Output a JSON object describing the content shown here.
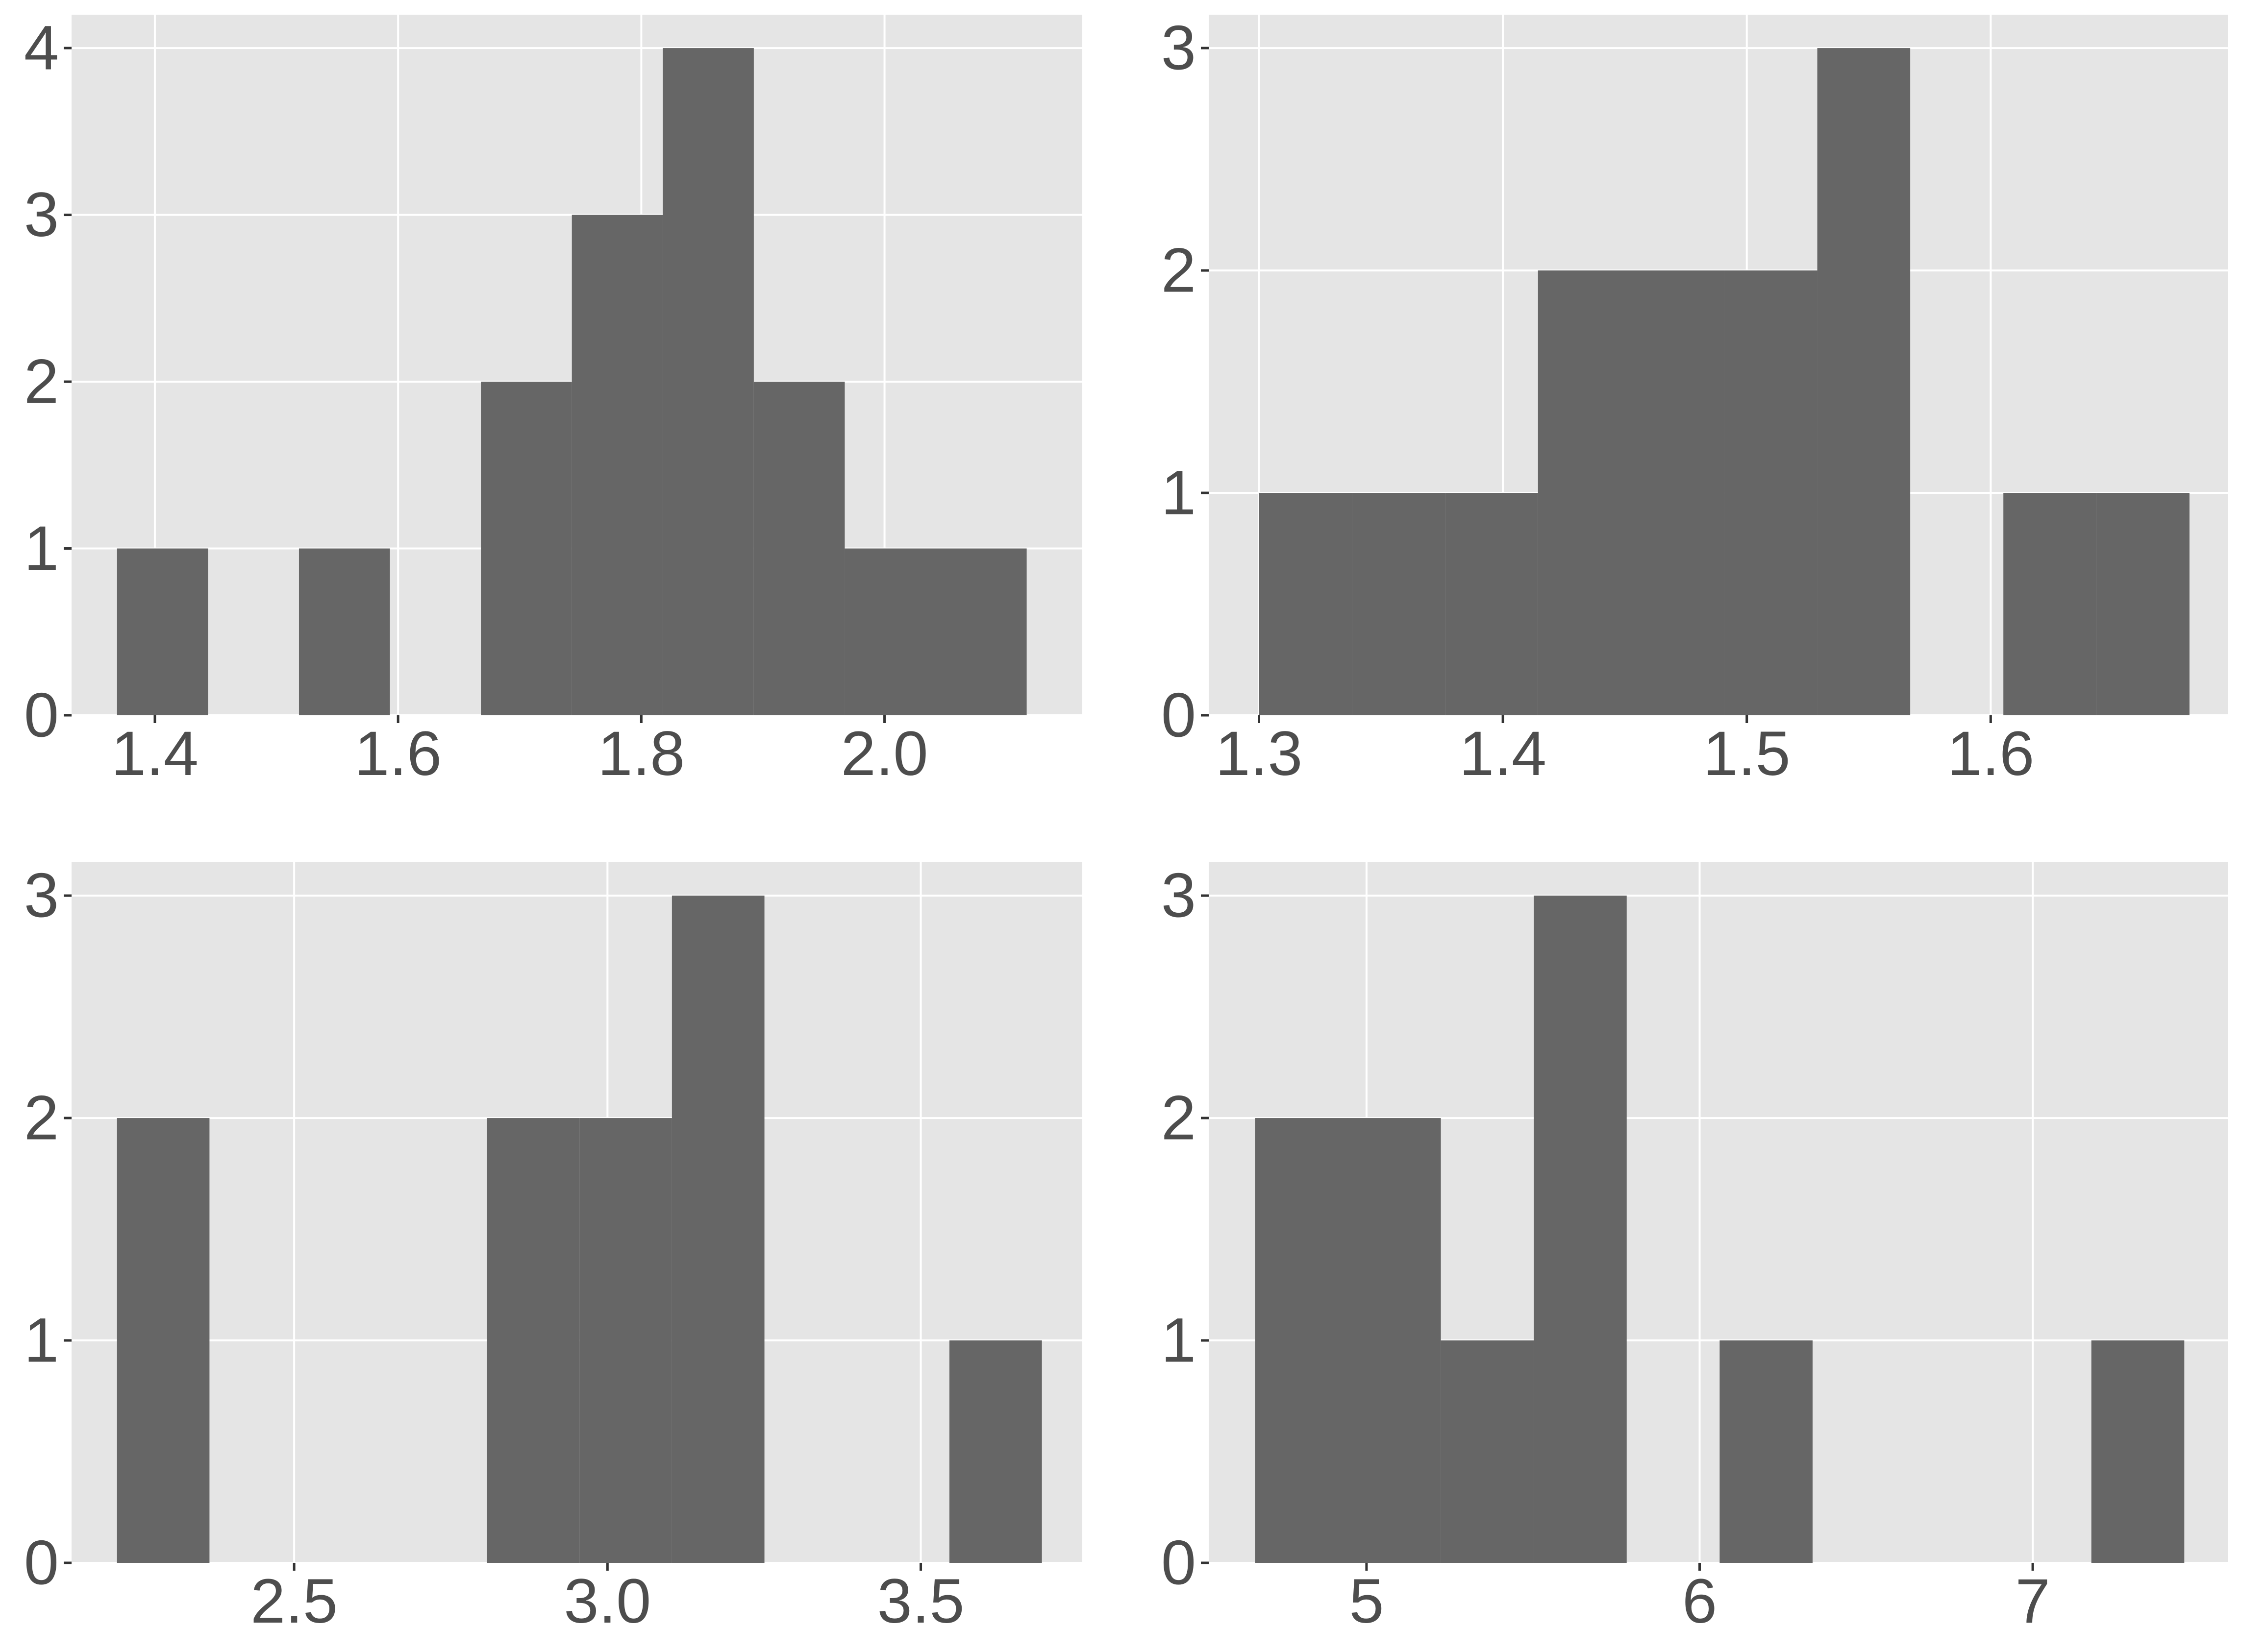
{
  "colors": {
    "panel_bg": "#e5e5e5",
    "grid": "#ffffff",
    "bar": "#666666",
    "text": "#4d4d4d"
  },
  "chart_data": [
    {
      "type": "bar",
      "histogram": true,
      "title": "",
      "xlabel": "",
      "ylabel": "",
      "grid": true,
      "xlim": [
        1.3315,
        2.1626
      ],
      "ylim": [
        0,
        4.2
      ],
      "xticks": [
        1.4,
        1.6,
        1.8,
        2.0
      ],
      "xtick_labels": [
        "1.4",
        "1.6",
        "1.8",
        "2.0"
      ],
      "yticks": [
        0,
        1,
        2,
        3,
        4
      ],
      "ytick_labels": [
        "0",
        "1",
        "2",
        "3",
        "4"
      ],
      "bins": [
        {
          "x0": 1.3689,
          "x1": 1.4437,
          "count": 1
        },
        {
          "x0": 1.4437,
          "x1": 1.5185,
          "count": 0
        },
        {
          "x0": 1.5185,
          "x1": 1.5933,
          "count": 1
        },
        {
          "x0": 1.5933,
          "x1": 1.6681,
          "count": 0
        },
        {
          "x0": 1.6681,
          "x1": 1.7429,
          "count": 2
        },
        {
          "x0": 1.7429,
          "x1": 1.8177,
          "count": 3
        },
        {
          "x0": 1.8177,
          "x1": 1.8925,
          "count": 4
        },
        {
          "x0": 1.8925,
          "x1": 1.9673,
          "count": 2
        },
        {
          "x0": 1.9673,
          "x1": 2.0421,
          "count": 1
        },
        {
          "x0": 2.0421,
          "x1": 2.1169,
          "count": 1
        }
      ]
    },
    {
      "type": "bar",
      "histogram": true,
      "title": "",
      "xlabel": "",
      "ylabel": "",
      "grid": true,
      "xlim": [
        1.2794,
        1.6974
      ],
      "ylim": [
        0,
        3.15
      ],
      "xticks": [
        1.3,
        1.4,
        1.5,
        1.6
      ],
      "xtick_labels": [
        "1.3",
        "1.4",
        "1.5",
        "1.6"
      ],
      "yticks": [
        0,
        1,
        2,
        3
      ],
      "ytick_labels": [
        "0",
        "1",
        "2",
        "3"
      ],
      "bins": [
        {
          "x0": 1.3,
          "x1": 1.3381,
          "count": 1
        },
        {
          "x0": 1.3381,
          "x1": 1.3763,
          "count": 1
        },
        {
          "x0": 1.3763,
          "x1": 1.4144,
          "count": 1
        },
        {
          "x0": 1.4144,
          "x1": 1.4526,
          "count": 2
        },
        {
          "x0": 1.4526,
          "x1": 1.4907,
          "count": 2
        },
        {
          "x0": 1.4907,
          "x1": 1.5289,
          "count": 2
        },
        {
          "x0": 1.5289,
          "x1": 1.567,
          "count": 3
        },
        {
          "x0": 1.567,
          "x1": 1.6052,
          "count": 0
        },
        {
          "x0": 1.6052,
          "x1": 1.6433,
          "count": 1
        },
        {
          "x0": 1.6433,
          "x1": 1.6815,
          "count": 1
        }
      ]
    },
    {
      "type": "bar",
      "histogram": true,
      "title": "",
      "xlabel": "",
      "ylabel": "",
      "grid": true,
      "xlim": [
        2.1448,
        3.7577
      ],
      "ylim": [
        0,
        3.15
      ],
      "xticks": [
        2.5,
        3.0,
        3.5
      ],
      "xtick_labels": [
        "2.5",
        "3.0",
        "3.5"
      ],
      "yticks": [
        0,
        1,
        2,
        3
      ],
      "ytick_labels": [
        "0",
        "1",
        "2",
        "3"
      ],
      "bins": [
        {
          "x0": 2.2173,
          "x1": 2.3649,
          "count": 2
        },
        {
          "x0": 2.3649,
          "x1": 2.5125,
          "count": 0
        },
        {
          "x0": 2.5125,
          "x1": 2.6601,
          "count": 0
        },
        {
          "x0": 2.6601,
          "x1": 2.8077,
          "count": 0
        },
        {
          "x0": 2.8077,
          "x1": 2.9553,
          "count": 2
        },
        {
          "x0": 2.9553,
          "x1": 3.1029,
          "count": 2
        },
        {
          "x0": 3.1029,
          "x1": 3.2505,
          "count": 3
        },
        {
          "x0": 3.2505,
          "x1": 3.3981,
          "count": 0
        },
        {
          "x0": 3.3981,
          "x1": 3.5457,
          "count": 0
        },
        {
          "x0": 3.5457,
          "x1": 3.6933,
          "count": 1
        }
      ]
    },
    {
      "type": "bar",
      "histogram": true,
      "title": "",
      "xlabel": "",
      "ylabel": "",
      "grid": true,
      "xlim": [
        4.5263,
        7.587
      ],
      "ylim": [
        0,
        3.15
      ],
      "xticks": [
        5,
        6,
        7
      ],
      "xtick_labels": [
        "5",
        "6",
        "7"
      ],
      "yticks": [
        0,
        1,
        2,
        3
      ],
      "ytick_labels": [
        "0",
        "1",
        "2",
        "3"
      ],
      "bins": [
        {
          "x0": 4.6652,
          "x1": 4.9442,
          "count": 2
        },
        {
          "x0": 4.9442,
          "x1": 5.2232,
          "count": 2
        },
        {
          "x0": 5.2232,
          "x1": 5.5021,
          "count": 1
        },
        {
          "x0": 5.5021,
          "x1": 5.7811,
          "count": 3
        },
        {
          "x0": 5.7811,
          "x1": 6.0601,
          "count": 0
        },
        {
          "x0": 6.0601,
          "x1": 6.3391,
          "count": 1
        },
        {
          "x0": 6.3391,
          "x1": 6.618,
          "count": 0
        },
        {
          "x0": 6.618,
          "x1": 6.897,
          "count": 0
        },
        {
          "x0": 6.897,
          "x1": 7.176,
          "count": 0
        },
        {
          "x0": 7.176,
          "x1": 7.455,
          "count": 1
        }
      ]
    }
  ]
}
